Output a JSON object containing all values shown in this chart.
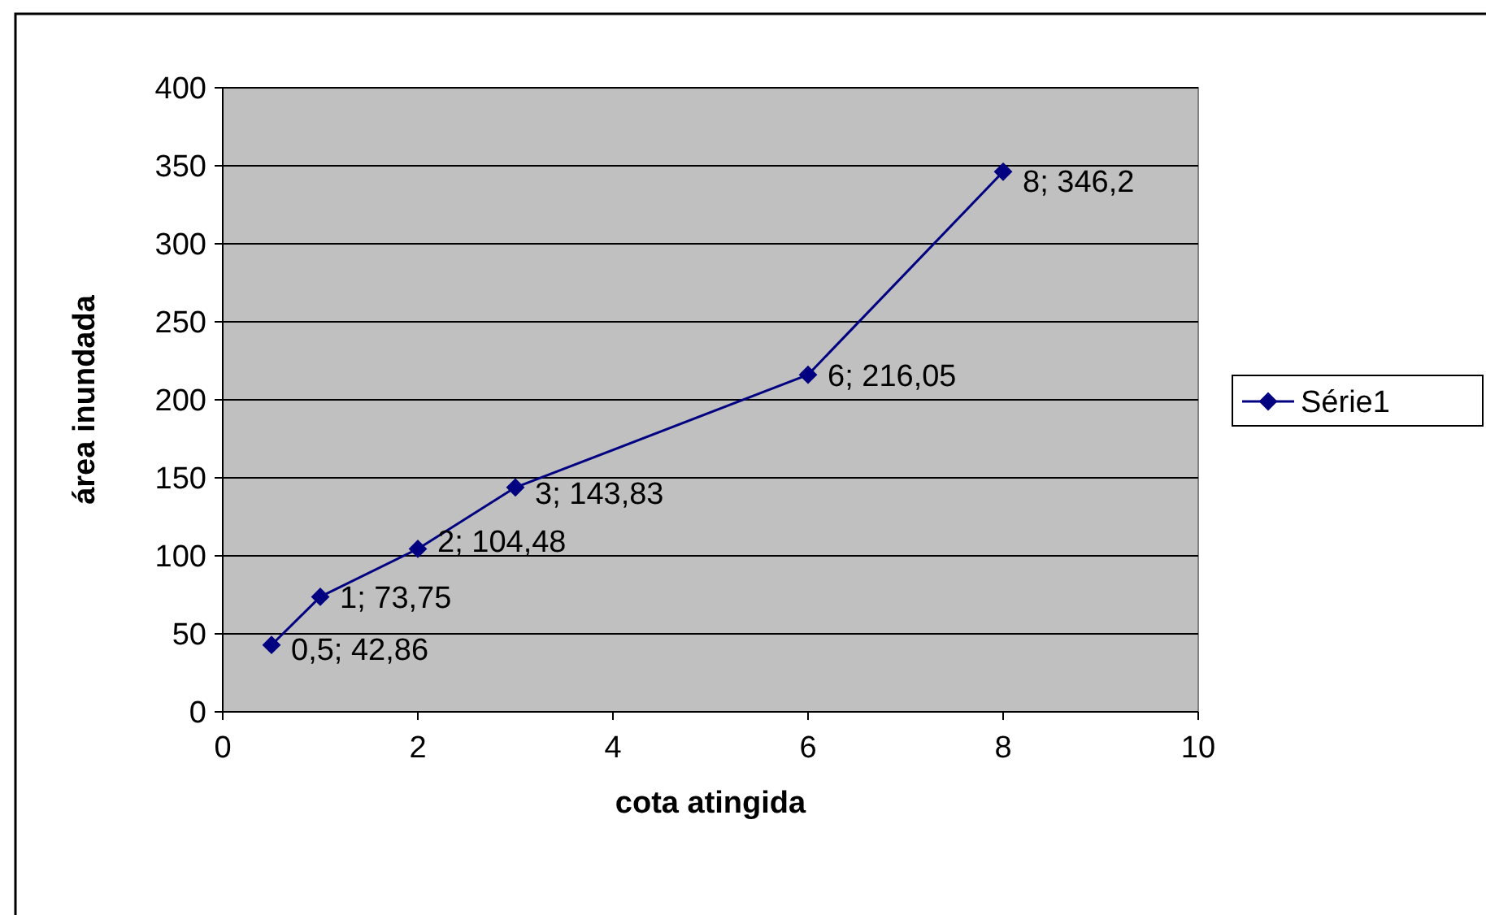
{
  "chart_data": {
    "type": "line",
    "xlabel": "cota atingida",
    "ylabel": "área inundada",
    "x": [
      0.5,
      1,
      2,
      3,
      6,
      8
    ],
    "series": [
      {
        "name": "Série1",
        "color": "#000080",
        "values": [
          42.86,
          73.75,
          104.48,
          143.83,
          216.05,
          346.2
        ],
        "value_labels": [
          "0,5; 42,86",
          "1; 73,75",
          "2; 104,48",
          "3; 143,83",
          "6; 216,05",
          "8; 346,2"
        ]
      }
    ],
    "xlim": [
      0,
      10
    ],
    "xticks": [
      0,
      2,
      4,
      6,
      8,
      10
    ],
    "ylim": [
      0,
      400
    ],
    "yticks": [
      0,
      50,
      100,
      150,
      200,
      250,
      300,
      350,
      400
    ],
    "grid": "y",
    "legend": "right",
    "marker": "diamond",
    "line_style": "solid"
  }
}
